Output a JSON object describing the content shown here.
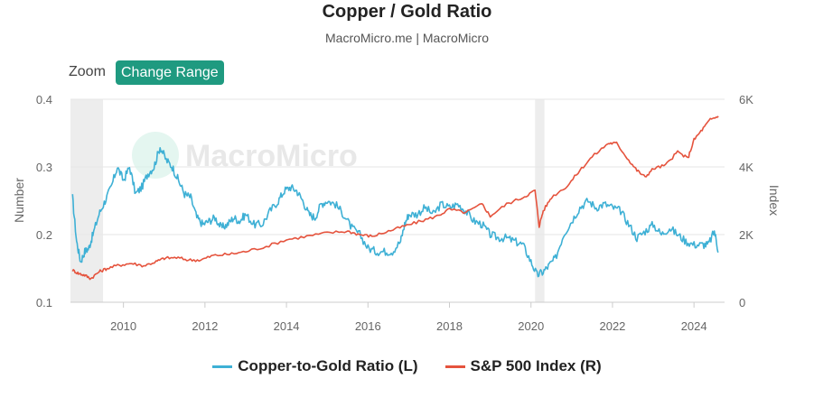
{
  "header": {
    "title": "Copper / Gold Ratio",
    "subtitle": "MacroMicro.me | MacroMicro"
  },
  "toolbar": {
    "zoom_label": "Zoom",
    "range_button": "Change Range"
  },
  "watermark": "MacroMicro",
  "chart_data": {
    "type": "line",
    "title": "Copper / Gold Ratio",
    "xlabel": "",
    "ylabel_left": "Number",
    "ylabel_right": "Index",
    "xlim": [
      2008.7,
      2024.75
    ],
    "ylim_left": [
      0.1,
      0.4
    ],
    "ylim_right": [
      0,
      6000
    ],
    "x_ticks": [
      "2010",
      "2012",
      "2014",
      "2016",
      "2018",
      "2020",
      "2022",
      "2024"
    ],
    "y_left_ticks": [
      "0.1",
      "0.2",
      "0.3",
      "0.4"
    ],
    "y_right_ticks": [
      "0",
      "2K",
      "4K",
      "6K"
    ],
    "grid": true,
    "legend_position": "bottom",
    "shaded_periods": [
      [
        2008.7,
        2009.5
      ],
      [
        2020.1,
        2020.33
      ]
    ],
    "series": [
      {
        "name": "Copper-to-Gold Ratio (L)",
        "axis": "left",
        "color": "#3eb0d5",
        "x": [
          2008.75,
          2008.85,
          2008.95,
          2009.05,
          2009.15,
          2009.25,
          2009.4,
          2009.55,
          2009.7,
          2009.85,
          2010.0,
          2010.15,
          2010.3,
          2010.45,
          2010.6,
          2010.75,
          2010.9,
          2011.05,
          2011.2,
          2011.35,
          2011.5,
          2011.65,
          2011.8,
          2011.95,
          2012.1,
          2012.25,
          2012.4,
          2012.55,
          2012.7,
          2012.85,
          2013.0,
          2013.2,
          2013.4,
          2013.6,
          2013.8,
          2013.95,
          2014.1,
          2014.25,
          2014.4,
          2014.55,
          2014.7,
          2014.85,
          2015.0,
          2015.2,
          2015.4,
          2015.6,
          2015.8,
          2016.0,
          2016.2,
          2016.4,
          2016.6,
          2016.8,
          2016.9,
          2017.0,
          2017.2,
          2017.4,
          2017.6,
          2017.8,
          2018.0,
          2018.2,
          2018.4,
          2018.6,
          2018.8,
          2019.0,
          2019.2,
          2019.4,
          2019.6,
          2019.8,
          2020.0,
          2020.15,
          2020.3,
          2020.45,
          2020.6,
          2020.8,
          2021.0,
          2021.2,
          2021.4,
          2021.6,
          2021.8,
          2022.0,
          2022.2,
          2022.4,
          2022.6,
          2022.8,
          2023.0,
          2023.2,
          2023.4,
          2023.6,
          2023.8,
          2024.0,
          2024.2,
          2024.35,
          2024.5,
          2024.6
        ],
        "values": [
          0.255,
          0.19,
          0.16,
          0.175,
          0.18,
          0.2,
          0.23,
          0.25,
          0.27,
          0.3,
          0.28,
          0.3,
          0.26,
          0.27,
          0.29,
          0.3,
          0.33,
          0.31,
          0.3,
          0.28,
          0.26,
          0.255,
          0.225,
          0.215,
          0.22,
          0.225,
          0.21,
          0.215,
          0.225,
          0.22,
          0.23,
          0.215,
          0.215,
          0.235,
          0.25,
          0.265,
          0.27,
          0.265,
          0.25,
          0.23,
          0.225,
          0.245,
          0.25,
          0.245,
          0.23,
          0.21,
          0.2,
          0.18,
          0.175,
          0.175,
          0.175,
          0.19,
          0.215,
          0.23,
          0.23,
          0.24,
          0.23,
          0.245,
          0.24,
          0.245,
          0.235,
          0.22,
          0.215,
          0.2,
          0.195,
          0.195,
          0.19,
          0.185,
          0.16,
          0.14,
          0.145,
          0.155,
          0.165,
          0.2,
          0.22,
          0.24,
          0.25,
          0.24,
          0.245,
          0.24,
          0.235,
          0.215,
          0.195,
          0.205,
          0.215,
          0.2,
          0.21,
          0.2,
          0.19,
          0.185,
          0.185,
          0.185,
          0.205,
          0.175
        ]
      },
      {
        "name": "S&P 500 Index (R)",
        "axis": "right",
        "color": "#e5533d",
        "x": [
          2008.75,
          2008.9,
          2009.05,
          2009.2,
          2009.4,
          2009.6,
          2009.9,
          2010.2,
          2010.5,
          2010.8,
          2011.0,
          2011.3,
          2011.6,
          2011.9,
          2012.2,
          2012.6,
          2013.0,
          2013.5,
          2014.0,
          2014.5,
          2015.0,
          2015.5,
          2015.8,
          2016.1,
          2016.5,
          2016.9,
          2017.3,
          2017.7,
          2018.0,
          2018.4,
          2018.8,
          2019.0,
          2019.4,
          2019.8,
          2020.1,
          2020.2,
          2020.3,
          2020.5,
          2020.9,
          2021.2,
          2021.5,
          2021.9,
          2022.1,
          2022.4,
          2022.6,
          2022.8,
          2023.0,
          2023.3,
          2023.6,
          2023.85,
          2024.0,
          2024.2,
          2024.4,
          2024.6
        ],
        "values": [
          950,
          850,
          800,
          700,
          900,
          1000,
          1100,
          1150,
          1080,
          1200,
          1300,
          1320,
          1250,
          1250,
          1380,
          1420,
          1500,
          1650,
          1850,
          1950,
          2050,
          2100,
          2000,
          1950,
          2100,
          2250,
          2400,
          2550,
          2750,
          2650,
          2900,
          2550,
          2900,
          3100,
          3300,
          2250,
          2700,
          3100,
          3450,
          3900,
          4300,
          4700,
          4700,
          4200,
          3900,
          3700,
          3950,
          4050,
          4450,
          4250,
          4800,
          5100,
          5400,
          5500
        ]
      }
    ]
  }
}
